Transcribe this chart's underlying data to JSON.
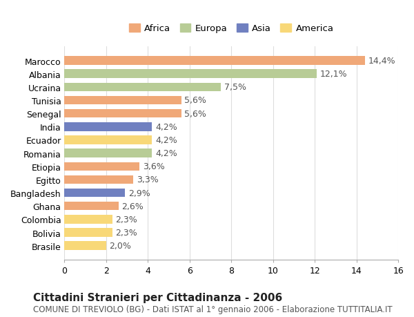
{
  "categories": [
    "Marocco",
    "Albania",
    "Ucraina",
    "Tunisia",
    "Senegal",
    "India",
    "Ecuador",
    "Romania",
    "Etiopia",
    "Egitto",
    "Bangladesh",
    "Ghana",
    "Colombia",
    "Bolivia",
    "Brasile"
  ],
  "values": [
    14.4,
    12.1,
    7.5,
    5.6,
    5.6,
    4.2,
    4.2,
    4.2,
    3.6,
    3.3,
    2.9,
    2.6,
    2.3,
    2.3,
    2.0
  ],
  "continents": [
    "Africa",
    "Europa",
    "Europa",
    "Africa",
    "Africa",
    "Asia",
    "America",
    "Europa",
    "Africa",
    "Africa",
    "Asia",
    "Africa",
    "America",
    "America",
    "America"
  ],
  "colors": {
    "Africa": "#F0A878",
    "Europa": "#B8CC96",
    "Asia": "#7080C0",
    "America": "#F8D878"
  },
  "legend_order": [
    "Africa",
    "Europa",
    "Asia",
    "America"
  ],
  "xlim": [
    0,
    16
  ],
  "xticks": [
    0,
    2,
    4,
    6,
    8,
    10,
    12,
    14,
    16
  ],
  "title": "Cittadini Stranieri per Cittadinanza - 2006",
  "subtitle": "COMUNE DI TREVIOLO (BG) - Dati ISTAT al 1° gennaio 2006 - Elaborazione TUTTITALIA.IT",
  "background_color": "#ffffff",
  "grid_color": "#dddddd",
  "bar_height": 0.65,
  "label_fontsize": 9,
  "tick_fontsize": 9,
  "title_fontsize": 11,
  "subtitle_fontsize": 8.5
}
